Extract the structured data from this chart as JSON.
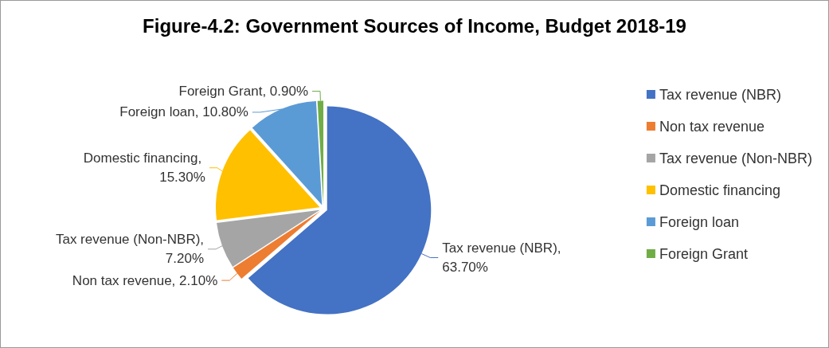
{
  "chart_data": {
    "type": "pie",
    "title": "Figure-4.2: Government Sources of Income, Budget 2018-19",
    "categories": [
      "Tax revenue (NBR)",
      "Non tax revenue",
      "Tax revenue (Non-NBR)",
      "Domestic financing",
      "Foreign loan",
      "Foreign Grant"
    ],
    "values": [
      63.7,
      2.1,
      7.2,
      15.3,
      10.8,
      0.9
    ],
    "value_labels": [
      "Tax revenue (NBR), 63.70%",
      "Non tax revenue, 2.10%",
      "Tax revenue (Non-NBR), 7.20%",
      "Domestic financing, 15.30%",
      "Foreign loan, 10.80%",
      "Foreign Grant, 0.90%"
    ],
    "colors": [
      "#4472c4",
      "#ed7d31",
      "#a5a5a5",
      "#ffc000",
      "#5b9bd5",
      "#70ad47"
    ],
    "legend": "right"
  }
}
